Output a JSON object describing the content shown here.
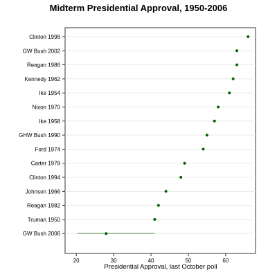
{
  "chart_data": {
    "type": "dotplot",
    "title": "Midterm Presidential Approval, 1950-2006",
    "xlabel": "Presidential Approval, last October poll",
    "ylabel": "",
    "xlim": [
      17,
      68
    ],
    "xticks": [
      20,
      30,
      40,
      50,
      60
    ],
    "grid": true,
    "legend": "none",
    "categories": [
      "Clinton 1998",
      "GW Bush 2002",
      "Reagan 1986",
      "Kennedy 1962",
      "Ike 1954",
      "Nixon 1970",
      "Ike 1958",
      "GHW Bush 1990",
      "Ford 1974",
      "Carter 1978",
      "Clinton 1994",
      "Johnson 1966",
      "Reagan 1982",
      "Truman 1950",
      "GW Bush 2006"
    ],
    "values": [
      66,
      63,
      63,
      62,
      61,
      58,
      57,
      55,
      54,
      49,
      48,
      44,
      42,
      41,
      28
    ],
    "ranges": [
      {
        "category": "GW Bush 2006",
        "low": 20.3,
        "high": 41
      }
    ],
    "colors": {
      "point": "#006400",
      "range_line": "#6b9a6b",
      "grid": "#e6e6e6",
      "axis": "#000000"
    }
  }
}
